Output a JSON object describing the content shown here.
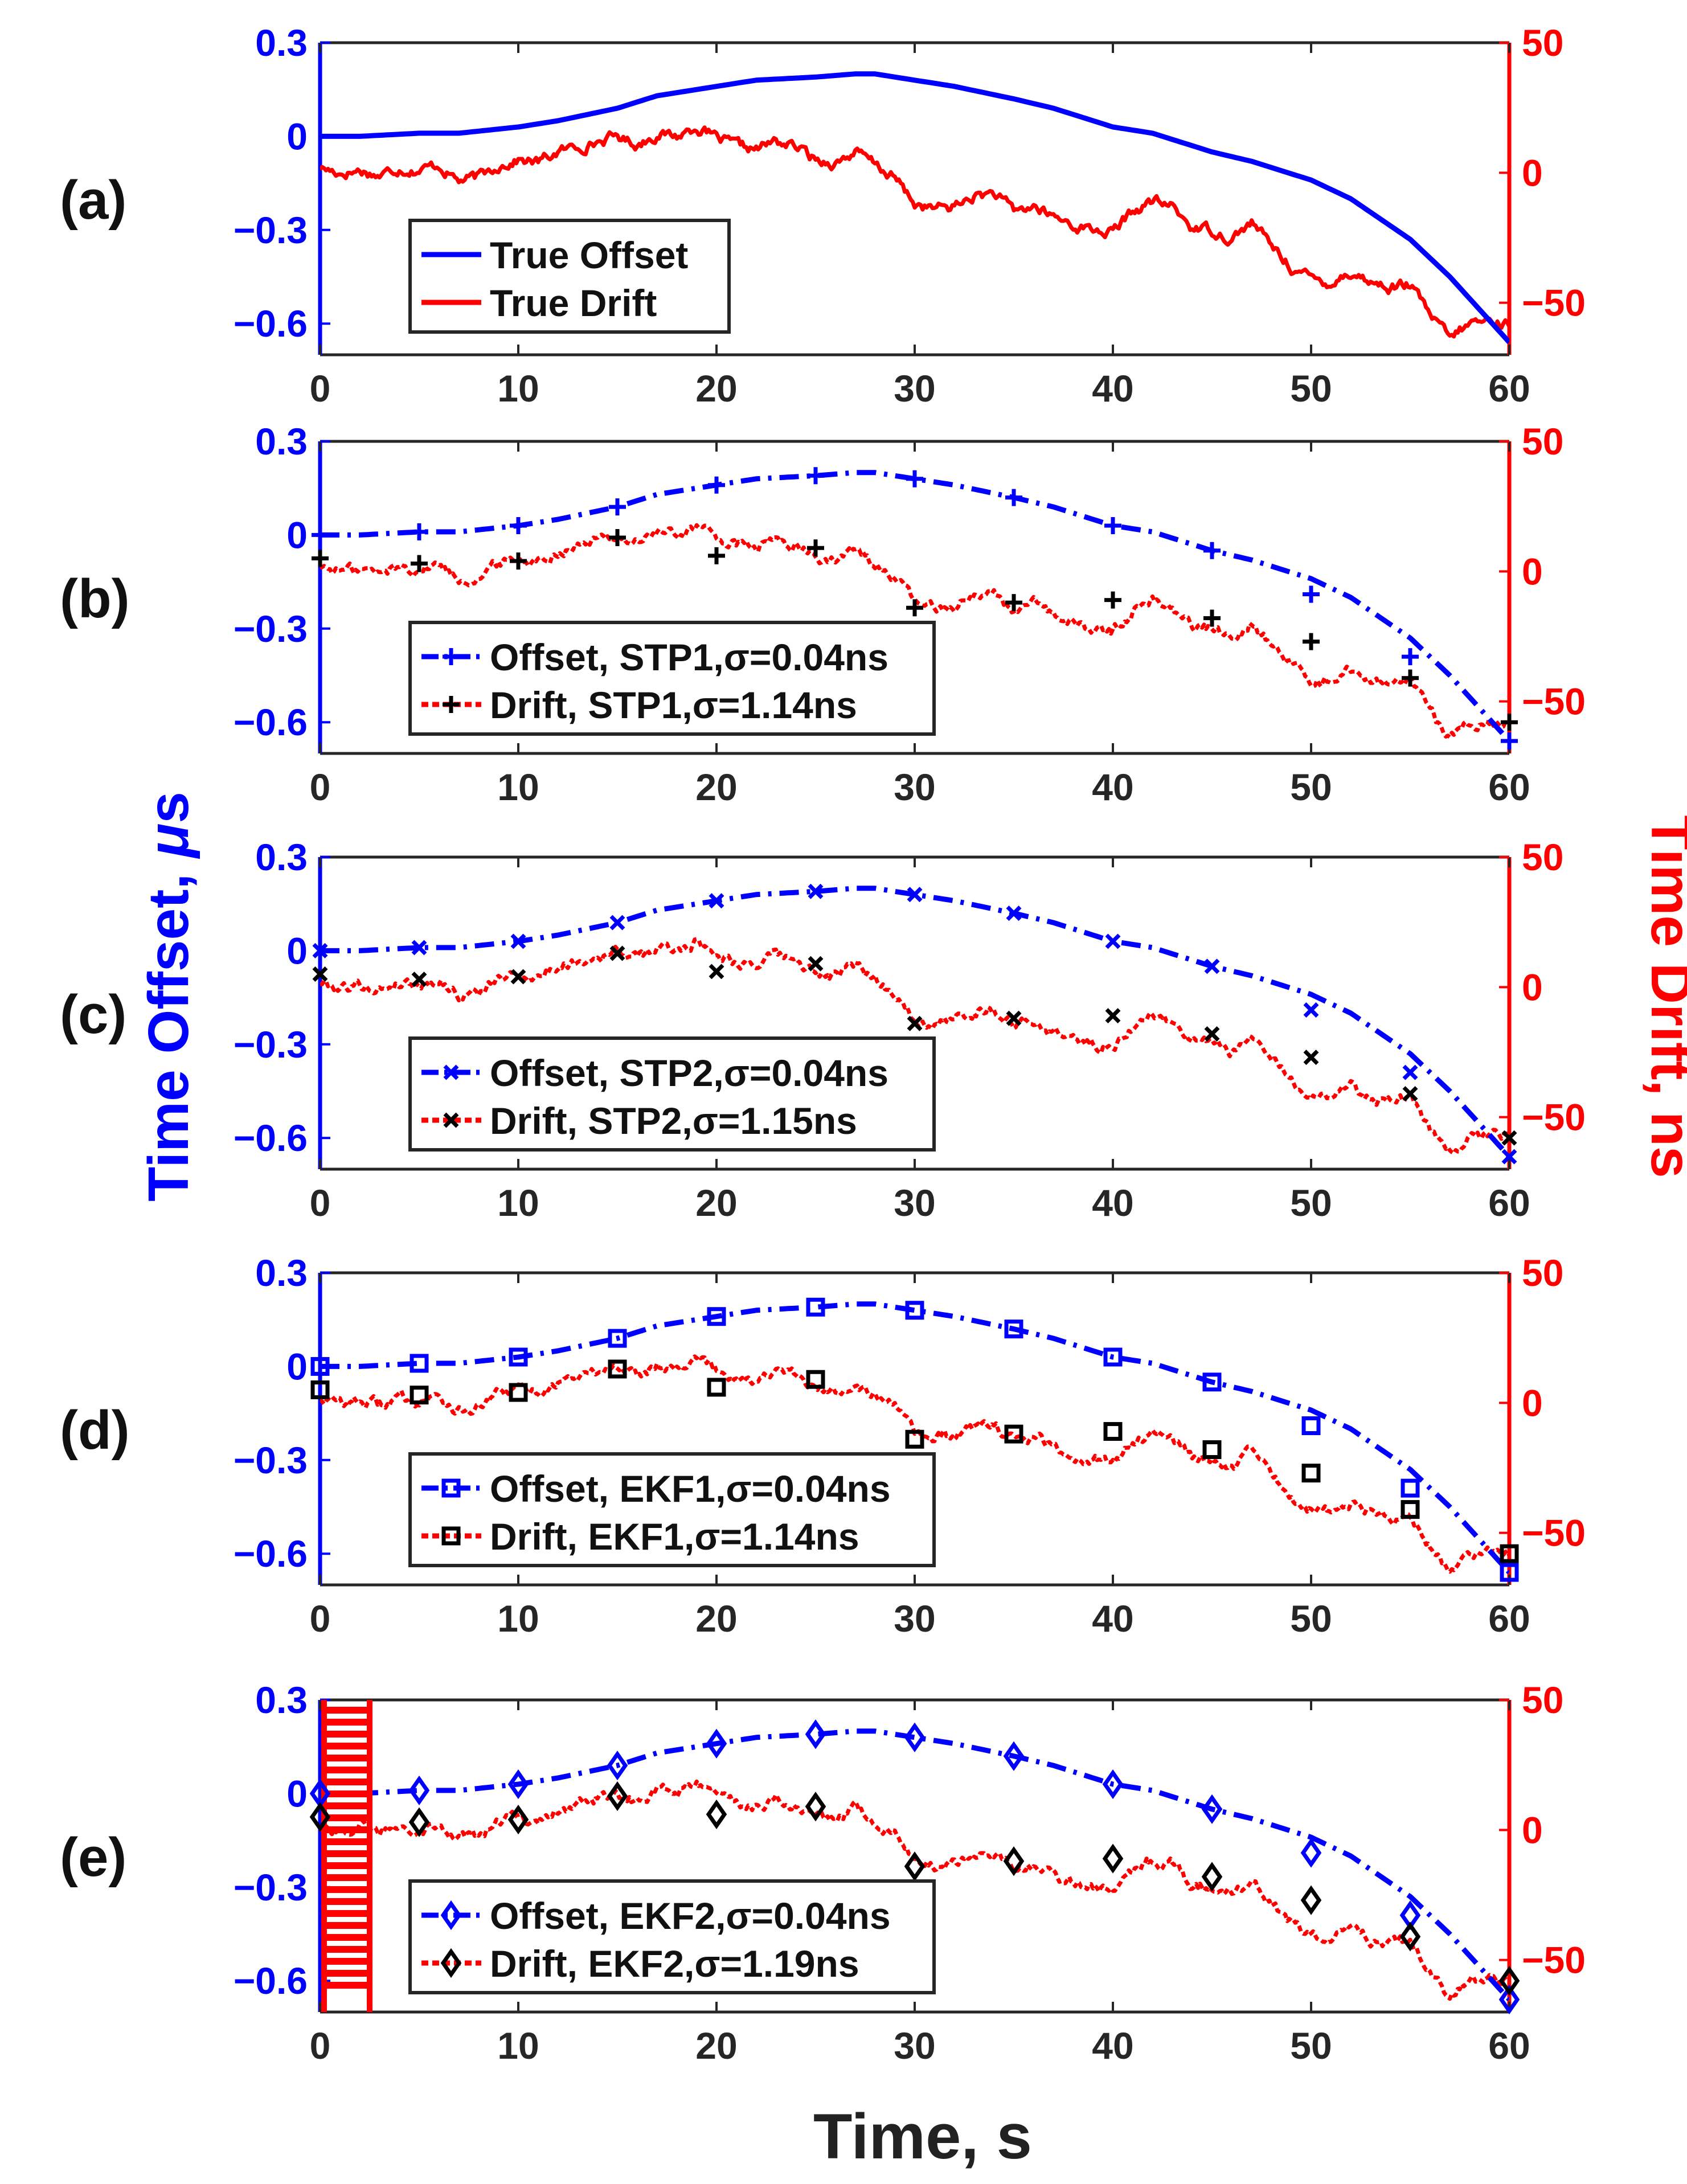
{
  "figure": {
    "y_label_left_prefix": "Time Offset, ",
    "y_label_left_symbol": "μ",
    "y_label_left_unit": "s",
    "y_label_right": "Time Drift, ns",
    "x_label": "Time, s",
    "colors": {
      "offset": "#0000ff",
      "drift": "#ff0000",
      "marker_dark": "#000000",
      "axis_left": "#0000ff",
      "axis_right": "#ff0000"
    }
  },
  "chart_data": [
    {
      "type": "line",
      "panel_label": "(a)",
      "x_ticks": [
        "0",
        "10",
        "20",
        "30",
        "40",
        "50",
        "60"
      ],
      "y_left_ticks": [
        "0.3",
        "0",
        "-0.3",
        "-0.6"
      ],
      "y_right_ticks": [
        "50",
        "0",
        "-50"
      ],
      "xlim": [
        0,
        60
      ],
      "ylim_left": [
        -0.7,
        0.3
      ],
      "ylim_right": [
        -70,
        50
      ],
      "legend": [
        {
          "label": "True Offset",
          "label_prefix": "",
          "sigma": "",
          "style": "solid-blue"
        },
        {
          "label": "True Drift",
          "label_prefix": "",
          "sigma": "",
          "style": "solid-red"
        }
      ],
      "marker": "none",
      "series": [
        {
          "name": "True Offset",
          "axis": "left",
          "x": [
            0,
            2,
            5,
            7,
            10,
            12,
            15,
            17,
            20,
            22,
            25,
            27,
            28,
            30,
            32,
            35,
            37,
            40,
            42,
            45,
            47,
            50,
            52,
            55,
            57,
            60
          ],
          "values": [
            0.0,
            0.0,
            0.01,
            0.01,
            0.03,
            0.05,
            0.09,
            0.13,
            0.16,
            0.18,
            0.19,
            0.2,
            0.2,
            0.18,
            0.16,
            0.12,
            0.09,
            0.03,
            0.01,
            -0.05,
            -0.08,
            -0.14,
            -0.2,
            -0.33,
            -0.45,
            -0.66
          ]
        },
        {
          "name": "True Drift",
          "axis": "left_right",
          "x": [
            0,
            1,
            2,
            3,
            4,
            5,
            6,
            7,
            8,
            9,
            10,
            11,
            12,
            13,
            14,
            15,
            16,
            17,
            18,
            19,
            20,
            21,
            22,
            23,
            24,
            25,
            26,
            27,
            28,
            29,
            30,
            31,
            32,
            33,
            34,
            35,
            36,
            37,
            38,
            39,
            40,
            41,
            42,
            43,
            44,
            45,
            46,
            47,
            48,
            49,
            50,
            51,
            52,
            53,
            54,
            55,
            56,
            57,
            58,
            59,
            60
          ],
          "values": [
            2,
            0,
            1,
            -1,
            2,
            1,
            3,
            -3,
            -2,
            3,
            5,
            4,
            8,
            10,
            12,
            14,
            11,
            15,
            14,
            18,
            13,
            10,
            9,
            12,
            10,
            5,
            4,
            8,
            3,
            -2,
            -12,
            -14,
            -13,
            -9,
            -8,
            -15,
            -13,
            -17,
            -20,
            -22,
            -23,
            -15,
            -11,
            -13,
            -21,
            -22,
            -25,
            -19,
            -28,
            -36,
            -41,
            -42,
            -38,
            -42,
            -44,
            -43,
            -55,
            -64,
            -58,
            -57,
            -58
          ]
        }
      ]
    },
    {
      "type": "line",
      "panel_label": "(b)",
      "x_ticks": [
        "0",
        "10",
        "20",
        "30",
        "40",
        "50",
        "60"
      ],
      "y_left_ticks": [
        "0.3",
        "0",
        "-0.3",
        "-0.6"
      ],
      "y_right_ticks": [
        "50",
        "0",
        "-50"
      ],
      "xlim": [
        0,
        60
      ],
      "ylim_left": [
        -0.7,
        0.3
      ],
      "ylim_right": [
        -70,
        50
      ],
      "legend": [
        {
          "label": "Offset, STP1,",
          "label_prefix": "",
          "sigma": "σ=0.04ns",
          "style": "dashdot-blue"
        },
        {
          "label": "Drift,    STP1,",
          "label_prefix": "",
          "sigma": "σ=1.14ns",
          "style": "dash-red"
        }
      ],
      "marker": "plus",
      "offset_markers": {
        "x": [
          0,
          5,
          10,
          15,
          20,
          25,
          30,
          35,
          40,
          45,
          50,
          55,
          60
        ],
        "values": [
          0.0,
          0.01,
          0.03,
          0.09,
          0.16,
          0.19,
          0.18,
          0.12,
          0.03,
          -0.05,
          -0.19,
          -0.39,
          -0.66
        ]
      },
      "drift_markers": {
        "x": [
          0,
          5,
          10,
          15,
          20,
          25,
          30,
          35,
          40,
          45,
          50,
          55,
          60
        ],
        "values": [
          5,
          3,
          4,
          13,
          6,
          9,
          -14,
          -12,
          -11,
          -18,
          -27,
          -41,
          -58
        ]
      }
    },
    {
      "type": "line",
      "panel_label": "(c)",
      "x_ticks": [
        "0",
        "10",
        "20",
        "30",
        "40",
        "50",
        "60"
      ],
      "y_left_ticks": [
        "0.3",
        "0",
        "-0.3",
        "-0.6"
      ],
      "y_right_ticks": [
        "50",
        "0",
        "-50"
      ],
      "xlim": [
        0,
        60
      ],
      "ylim_left": [
        -0.7,
        0.3
      ],
      "ylim_right": [
        -70,
        50
      ],
      "legend": [
        {
          "label": "Offset, STP2,",
          "label_prefix": "",
          "sigma": "σ=0.04ns",
          "style": "dashdot-blue"
        },
        {
          "label": "Drift,    STP2,",
          "label_prefix": "",
          "sigma": "σ=1.15ns",
          "style": "dash-red"
        }
      ],
      "marker": "x",
      "offset_markers": {
        "x": [
          0,
          5,
          10,
          15,
          20,
          25,
          30,
          35,
          40,
          45,
          50,
          55,
          60
        ],
        "values": [
          0.0,
          0.01,
          0.03,
          0.09,
          0.16,
          0.19,
          0.18,
          0.12,
          0.03,
          -0.05,
          -0.19,
          -0.39,
          -0.66
        ]
      },
      "drift_markers": {
        "x": [
          0,
          5,
          10,
          15,
          20,
          25,
          30,
          35,
          40,
          45,
          50,
          55,
          60
        ],
        "values": [
          5,
          3,
          4,
          13,
          6,
          9,
          -14,
          -12,
          -11,
          -18,
          -27,
          -41,
          -58
        ]
      }
    },
    {
      "type": "line",
      "panel_label": "(d)",
      "x_ticks": [
        "0",
        "10",
        "20",
        "30",
        "40",
        "50",
        "60"
      ],
      "y_left_ticks": [
        "0.3",
        "0",
        "-0.3",
        "-0.6"
      ],
      "y_right_ticks": [
        "50",
        "0",
        "-50"
      ],
      "xlim": [
        0,
        60
      ],
      "ylim_left": [
        -0.7,
        0.3
      ],
      "ylim_right": [
        -70,
        50
      ],
      "legend": [
        {
          "label": "Offset, EKF1,",
          "label_prefix": "",
          "sigma": "σ=0.04ns",
          "style": "dashdot-blue"
        },
        {
          "label": "Drift,    EKF1,",
          "label_prefix": "",
          "sigma": "σ=1.14ns",
          "style": "dash-red"
        }
      ],
      "marker": "square",
      "offset_markers": {
        "x": [
          0,
          5,
          10,
          15,
          20,
          25,
          30,
          35,
          40,
          45,
          50,
          55,
          60
        ],
        "values": [
          0.0,
          0.01,
          0.03,
          0.09,
          0.16,
          0.19,
          0.18,
          0.12,
          0.03,
          -0.05,
          -0.19,
          -0.39,
          -0.66
        ]
      },
      "drift_markers": {
        "x": [
          0,
          5,
          10,
          15,
          20,
          25,
          30,
          35,
          40,
          45,
          50,
          55,
          60
        ],
        "values": [
          5,
          3,
          4,
          13,
          6,
          9,
          -14,
          -12,
          -11,
          -18,
          -27,
          -41,
          -58
        ]
      }
    },
    {
      "type": "line",
      "panel_label": "(e)",
      "x_ticks": [
        "0",
        "10",
        "20",
        "30",
        "40",
        "50",
        "60"
      ],
      "y_left_ticks": [
        "0.3",
        "0",
        "-0.3",
        "-0.6"
      ],
      "y_right_ticks": [
        "50",
        "0",
        "-50"
      ],
      "xlim": [
        0,
        60
      ],
      "ylim_left": [
        -0.7,
        0.3
      ],
      "ylim_right": [
        -70,
        50
      ],
      "legend": [
        {
          "label": "Offset, EKF2,",
          "label_prefix": "",
          "sigma": "σ=0.04ns",
          "style": "dashdot-blue"
        },
        {
          "label": "Drift,    EKF2,",
          "label_prefix": "",
          "sigma": "σ=1.19ns",
          "style": "dash-red"
        }
      ],
      "marker": "diamond",
      "initial_transient": true,
      "offset_markers": {
        "x": [
          0,
          5,
          10,
          15,
          20,
          25,
          30,
          35,
          40,
          45,
          50,
          55,
          60
        ],
        "values": [
          0.0,
          0.01,
          0.03,
          0.09,
          0.16,
          0.19,
          0.18,
          0.12,
          0.03,
          -0.05,
          -0.19,
          -0.39,
          -0.66
        ]
      },
      "drift_markers": {
        "x": [
          0,
          5,
          10,
          15,
          20,
          25,
          30,
          35,
          40,
          45,
          50,
          55,
          60
        ],
        "values": [
          5,
          3,
          4,
          13,
          6,
          9,
          -14,
          -12,
          -11,
          -18,
          -27,
          -41,
          -58
        ]
      }
    }
  ]
}
